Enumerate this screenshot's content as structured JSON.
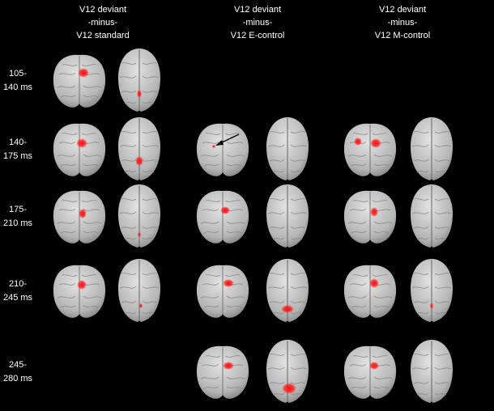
{
  "columns": [
    {
      "lines": [
        "V12 deviant",
        "-minus-",
        "V12 standard"
      ]
    },
    {
      "lines": [
        "V12 deviant",
        "-minus-",
        "V12 E-control"
      ]
    },
    {
      "lines": [
        "V12 deviant",
        "-minus-",
        "V12 M-control"
      ]
    }
  ],
  "rows": [
    {
      "lines": [
        "105-",
        "140 ms"
      ]
    },
    {
      "lines": [
        "140-",
        "175 ms"
      ]
    },
    {
      "lines": [
        "175-",
        "210 ms"
      ]
    },
    {
      "lines": [
        "210-",
        "245 ms"
      ]
    },
    {
      "lines": [
        "245-",
        "280 ms"
      ]
    }
  ]
}
